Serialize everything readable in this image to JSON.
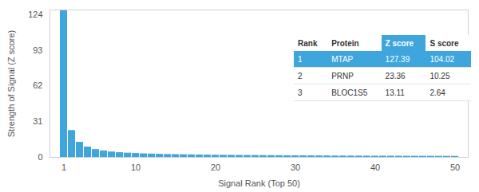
{
  "chart_data": {
    "type": "bar",
    "categories": [
      1,
      2,
      3,
      4,
      5,
      6,
      7,
      8,
      9,
      10,
      11,
      12,
      13,
      14,
      15,
      16,
      17,
      18,
      19,
      20,
      21,
      22,
      23,
      24,
      25,
      26,
      27,
      28,
      29,
      30,
      31,
      32,
      33,
      34,
      35,
      36,
      37,
      38,
      39,
      40,
      41,
      42,
      43,
      44,
      45,
      46,
      47,
      48,
      49,
      50
    ],
    "values": [
      127.39,
      23.36,
      13.11,
      9.0,
      6.8,
      5.6,
      4.7,
      4.1,
      3.7,
      3.4,
      3.1,
      2.9,
      2.7,
      2.5,
      2.4,
      2.3,
      2.2,
      2.1,
      2.0,
      1.9,
      1.85,
      1.8,
      1.75,
      1.7,
      1.65,
      1.6,
      1.55,
      1.5,
      1.45,
      1.4,
      1.36,
      1.32,
      1.28,
      1.25,
      1.22,
      1.19,
      1.16,
      1.13,
      1.1,
      1.07,
      1.05,
      1.03,
      1.01,
      0.99,
      0.97,
      0.95,
      0.93,
      0.91,
      0.89,
      0.87
    ],
    "color": "#3ea6dd",
    "x_label": "Signal Rank (Top 50)",
    "y_label": "Strength of Signal (Z score)",
    "xticks": [
      1,
      10,
      20,
      30,
      40,
      50
    ],
    "ylim": [
      0,
      128
    ],
    "yticks": [
      0,
      31,
      62,
      93,
      124
    ],
    "grid": false,
    "table": {
      "columns": [
        "Rank",
        "Protein",
        "Z score",
        "S score"
      ],
      "rows": [
        [
          1,
          "MTAP",
          127.39,
          104.02
        ],
        [
          2,
          "PRNP",
          23.36,
          10.25
        ],
        [
          3,
          "BLOC1S5",
          13.11,
          2.64
        ]
      ]
    }
  }
}
